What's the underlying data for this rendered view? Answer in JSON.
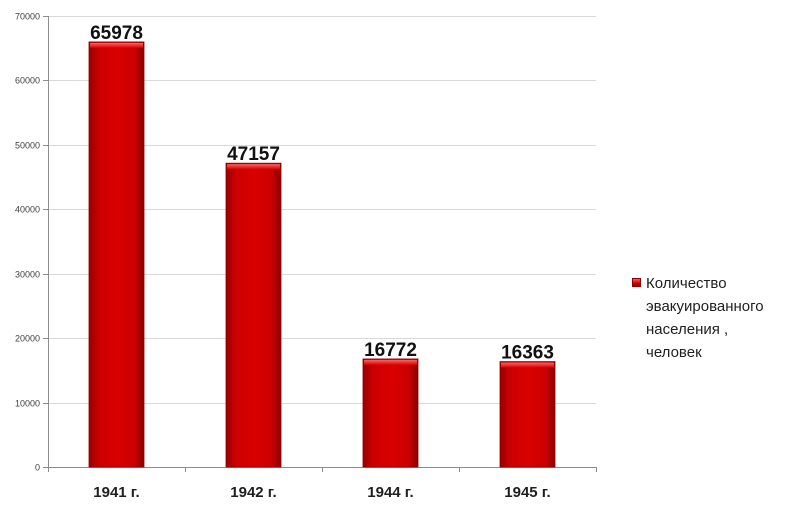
{
  "chart_data": {
    "type": "bar",
    "categories": [
      "1941 г.",
      "1942 г.",
      "1944 г.",
      "1945 г."
    ],
    "series": [
      {
        "name": "Количество эвакуированного населения , человек",
        "values": [
          65978,
          47157,
          16772,
          16363
        ]
      }
    ],
    "data_labels": [
      "65978",
      "47157",
      "16772",
      "16363"
    ],
    "y_ticks": [
      0,
      10000,
      20000,
      30000,
      40000,
      50000,
      60000,
      70000
    ],
    "ylim": [
      0,
      70000
    ],
    "title": "",
    "xlabel": "",
    "ylabel": "",
    "grid": true,
    "legend_position": "right",
    "colors": {
      "bar": "#cc0000",
      "bar_highlight": "#ff4a4a",
      "bar_shadow": "#8f0000",
      "grid": "#d9d9d9",
      "axis": "#8c8c8c",
      "text": "#1f1f1f"
    }
  },
  "legend": {
    "label": "Количество\nэвакуированного\nнаселения ,\nчеловек"
  }
}
